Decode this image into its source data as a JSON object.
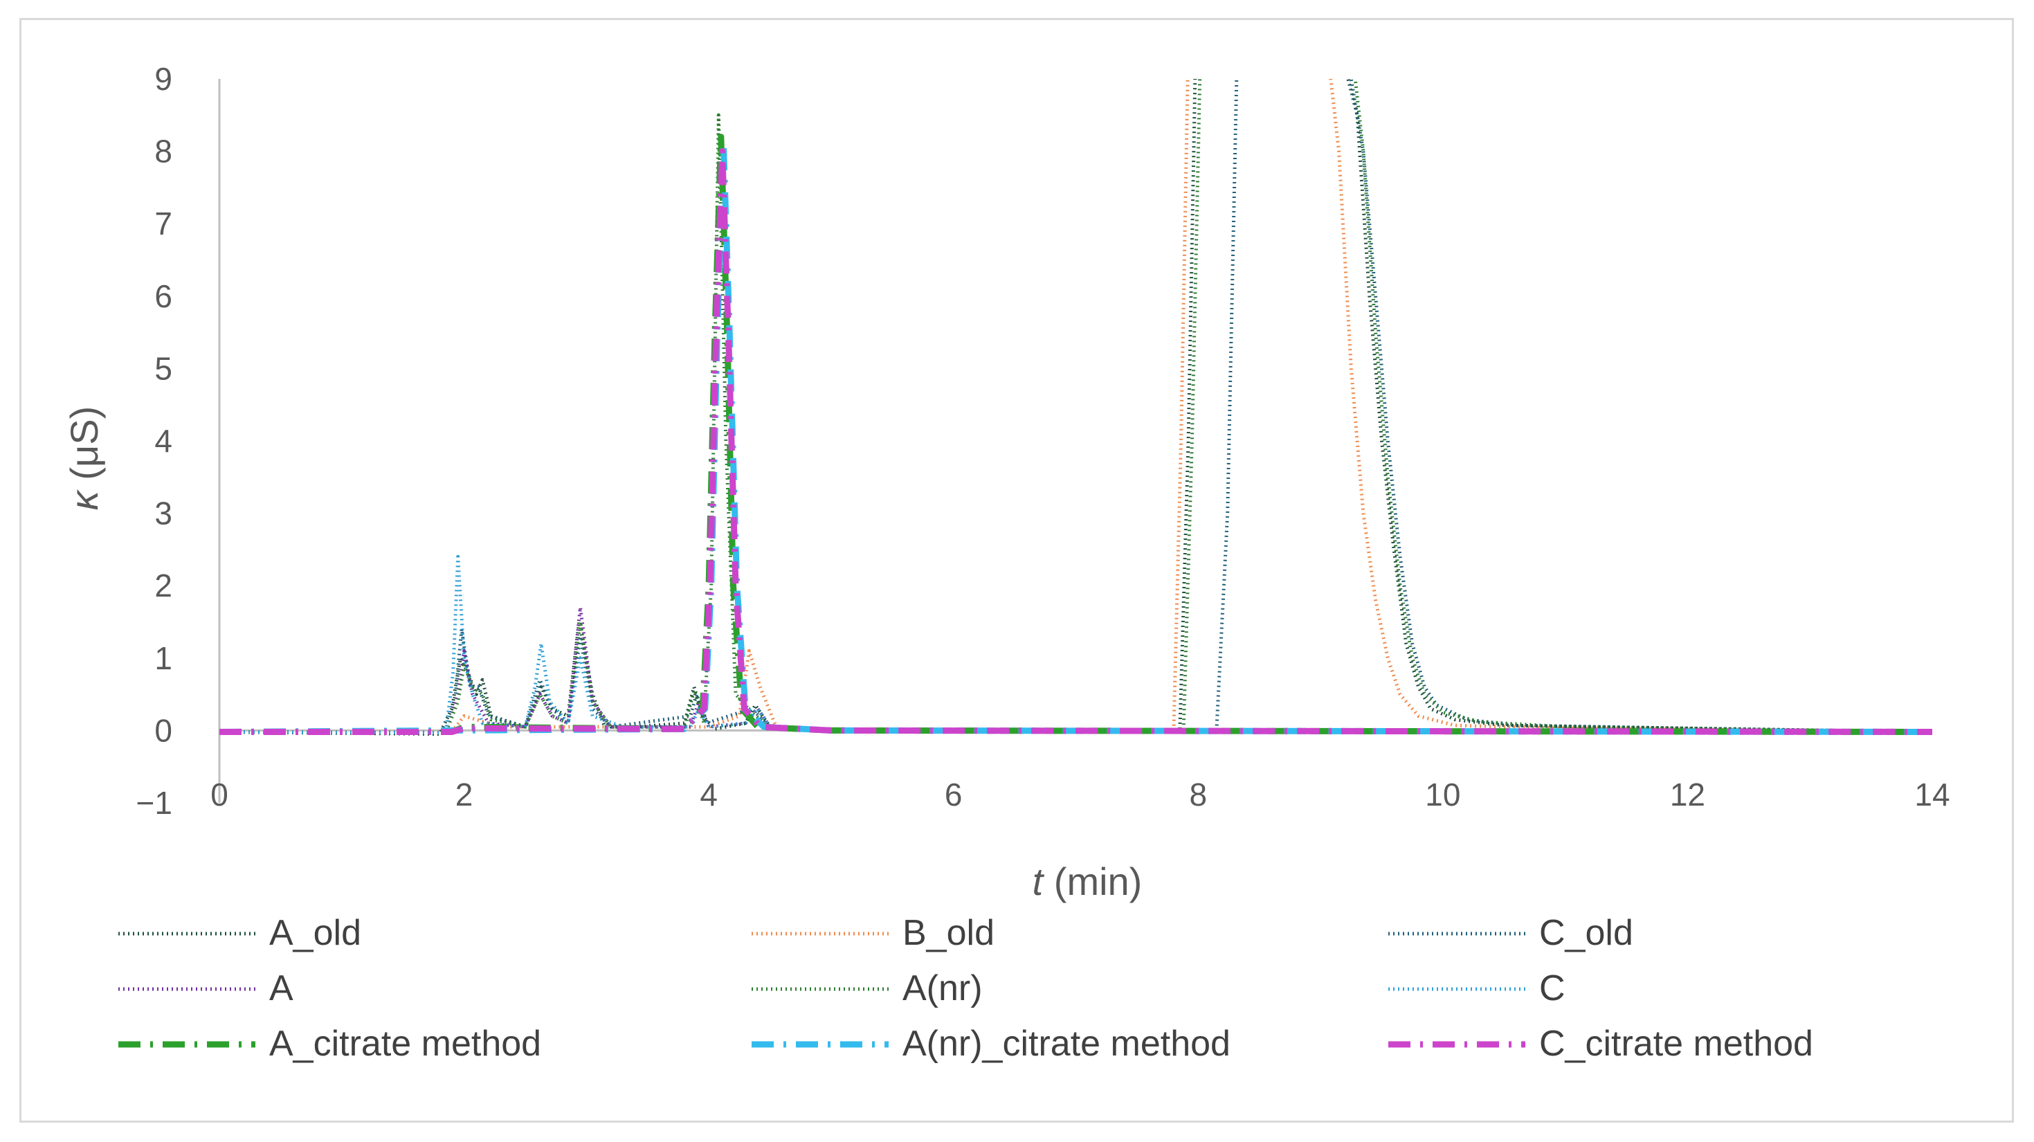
{
  "chart_data": {
    "type": "line",
    "title": "",
    "xlabel_italic": "t",
    "xlabel_rest": " (min)",
    "ylabel_italic": "κ",
    "ylabel_rest": " (μS)",
    "xlim": [
      0,
      14
    ],
    "ylim": [
      -1,
      9
    ],
    "xticks": [
      0,
      2,
      4,
      6,
      8,
      10,
      12,
      14
    ],
    "yticks": [
      -1,
      0,
      1,
      2,
      3,
      4,
      5,
      6,
      7,
      8,
      9
    ],
    "ytick_labels": [
      "−1",
      "0",
      "1",
      "2",
      "3",
      "4",
      "5",
      "6",
      "7",
      "8",
      "9"
    ],
    "grid": false,
    "legend_position": "bottom",
    "series": [
      {
        "name": "A_old",
        "color": "#1f4e3d",
        "style": "dotted",
        "width": 5,
        "points": [
          [
            0,
            -0.02
          ],
          [
            1.8,
            -0.05
          ],
          [
            1.9,
            0.3
          ],
          [
            1.97,
            1.0
          ],
          [
            2.03,
            0.8
          ],
          [
            2.1,
            0.5
          ],
          [
            2.15,
            0.7
          ],
          [
            2.22,
            0.2
          ],
          [
            2.5,
            0.05
          ],
          [
            2.63,
            0.6
          ],
          [
            2.72,
            0.3
          ],
          [
            2.85,
            0.2
          ],
          [
            2.94,
            1.5
          ],
          [
            3.05,
            0.5
          ],
          [
            3.15,
            0.05
          ],
          [
            3.4,
            0.05
          ],
          [
            3.8,
            0.1
          ],
          [
            3.88,
            0.6
          ],
          [
            3.95,
            0.2
          ],
          [
            4.05,
            0.02
          ],
          [
            4.3,
            0.1
          ],
          [
            4.38,
            0.35
          ],
          [
            4.5,
            0.05
          ],
          [
            5,
            0.0
          ],
          [
            7.85,
            0.0
          ],
          [
            7.92,
            4.0
          ],
          [
            7.98,
            9.5
          ],
          [
            9.15,
            9.5
          ],
          [
            9.3,
            8.5
          ],
          [
            9.4,
            6.0
          ],
          [
            9.5,
            4.0
          ],
          [
            9.6,
            2.5
          ],
          [
            9.7,
            1.2
          ],
          [
            9.8,
            0.6
          ],
          [
            9.9,
            0.3
          ],
          [
            10.1,
            0.15
          ],
          [
            10.5,
            0.07
          ],
          [
            12,
            0.03
          ],
          [
            14,
            -0.02
          ]
        ]
      },
      {
        "name": "B_old",
        "color": "#f08a4b",
        "style": "dotted",
        "width": 5,
        "points": [
          [
            0,
            -0.02
          ],
          [
            1.9,
            -0.02
          ],
          [
            2.0,
            0.2
          ],
          [
            2.3,
            0.05
          ],
          [
            3.0,
            0.05
          ],
          [
            4.0,
            0.05
          ],
          [
            4.25,
            0.2
          ],
          [
            4.33,
            1.1
          ],
          [
            4.42,
            0.6
          ],
          [
            4.55,
            0.05
          ],
          [
            5,
            0.0
          ],
          [
            7.8,
            0.0
          ],
          [
            7.86,
            4.0
          ],
          [
            7.92,
            9.5
          ],
          [
            9.05,
            9.5
          ],
          [
            9.15,
            8.0
          ],
          [
            9.25,
            5.0
          ],
          [
            9.35,
            3.0
          ],
          [
            9.45,
            1.8
          ],
          [
            9.55,
            1.0
          ],
          [
            9.65,
            0.5
          ],
          [
            9.8,
            0.2
          ],
          [
            10.1,
            0.07
          ],
          [
            11,
            0.03
          ],
          [
            14,
            -0.02
          ]
        ]
      },
      {
        "name": "C_old",
        "color": "#1f5f7a",
        "style": "dotted",
        "width": 5,
        "points": [
          [
            0,
            -0.02
          ],
          [
            1.85,
            -0.03
          ],
          [
            1.93,
            0.5
          ],
          [
            1.98,
            1.4
          ],
          [
            2.05,
            0.6
          ],
          [
            2.12,
            0.6
          ],
          [
            2.2,
            0.2
          ],
          [
            2.5,
            0.05
          ],
          [
            2.62,
            0.7
          ],
          [
            2.72,
            0.3
          ],
          [
            2.85,
            0.1
          ],
          [
            2.95,
            1.3
          ],
          [
            3.05,
            0.3
          ],
          [
            3.2,
            0.05
          ],
          [
            3.85,
            0.2
          ],
          [
            3.9,
            0.5
          ],
          [
            3.98,
            0.1
          ],
          [
            4.35,
            0.3
          ],
          [
            4.5,
            0.05
          ],
          [
            5,
            0.0
          ],
          [
            8.15,
            0.0
          ],
          [
            8.24,
            3.0
          ],
          [
            8.32,
            9.5
          ],
          [
            9.2,
            9.5
          ],
          [
            9.35,
            8.0
          ],
          [
            9.45,
            6.0
          ],
          [
            9.55,
            4.0
          ],
          [
            9.65,
            2.4
          ],
          [
            9.75,
            1.2
          ],
          [
            9.85,
            0.6
          ],
          [
            9.95,
            0.35
          ],
          [
            10.2,
            0.15
          ],
          [
            10.6,
            0.07
          ],
          [
            12,
            0.03
          ],
          [
            14,
            -0.02
          ]
        ]
      },
      {
        "name": "A",
        "color": "#7030a0",
        "style": "dotted",
        "width": 5,
        "points": [
          [
            0,
            -0.02
          ],
          [
            1.85,
            -0.03
          ],
          [
            1.95,
            0.5
          ],
          [
            2.0,
            1.1
          ],
          [
            2.07,
            0.5
          ],
          [
            2.2,
            0.1
          ],
          [
            2.5,
            0.05
          ],
          [
            2.62,
            0.5
          ],
          [
            2.72,
            0.2
          ],
          [
            2.85,
            0.1
          ],
          [
            2.95,
            1.7
          ],
          [
            3.05,
            0.4
          ],
          [
            3.2,
            0.05
          ],
          [
            3.85,
            0.05
          ],
          [
            3.92,
            0.4
          ],
          [
            4.0,
            0.05
          ],
          [
            4.3,
            0.1
          ],
          [
            4.4,
            0.3
          ],
          [
            4.5,
            0.05
          ],
          [
            5,
            0.0
          ],
          [
            14,
            -0.02
          ]
        ]
      },
      {
        "name": "A(nr)",
        "color": "#2e7d32",
        "style": "dotted",
        "width": 5,
        "points": [
          [
            0,
            -0.02
          ],
          [
            1.85,
            -0.03
          ],
          [
            1.95,
            0.4
          ],
          [
            2.0,
            0.9
          ],
          [
            2.07,
            0.6
          ],
          [
            2.15,
            0.5
          ],
          [
            2.22,
            0.15
          ],
          [
            2.5,
            0.05
          ],
          [
            2.62,
            0.5
          ],
          [
            2.72,
            0.2
          ],
          [
            2.85,
            0.1
          ],
          [
            2.95,
            1.5
          ],
          [
            3.05,
            0.4
          ],
          [
            3.2,
            0.05
          ],
          [
            3.8,
            0.05
          ],
          [
            3.88,
            0.55
          ],
          [
            3.96,
            0.1
          ],
          [
            4.02,
            2.0
          ],
          [
            4.08,
            8.5
          ],
          [
            4.14,
            4.0
          ],
          [
            4.22,
            0.5
          ],
          [
            4.35,
            0.25
          ],
          [
            4.5,
            0.05
          ],
          [
            5,
            0.0
          ],
          [
            7.88,
            0.0
          ],
          [
            7.95,
            4.0
          ],
          [
            8.02,
            9.5
          ],
          [
            9.25,
            9.5
          ],
          [
            9.35,
            8.0
          ],
          [
            9.45,
            5.5
          ],
          [
            9.55,
            3.5
          ],
          [
            9.65,
            2.0
          ],
          [
            9.75,
            1.0
          ],
          [
            9.85,
            0.5
          ],
          [
            10.0,
            0.25
          ],
          [
            10.3,
            0.12
          ],
          [
            11,
            0.05
          ],
          [
            14,
            -0.02
          ]
        ]
      },
      {
        "name": "C",
        "color": "#2f9fd8",
        "style": "dotted",
        "width": 5,
        "points": [
          [
            0,
            -0.02
          ],
          [
            1.85,
            -0.03
          ],
          [
            1.91,
            0.8
          ],
          [
            1.95,
            2.4
          ],
          [
            2.0,
            1.0
          ],
          [
            2.07,
            0.5
          ],
          [
            2.15,
            0.1
          ],
          [
            2.5,
            0.05
          ],
          [
            2.58,
            0.6
          ],
          [
            2.63,
            1.2
          ],
          [
            2.7,
            0.4
          ],
          [
            2.85,
            0.1
          ],
          [
            2.95,
            1.0
          ],
          [
            3.05,
            0.2
          ],
          [
            3.3,
            0.05
          ],
          [
            3.85,
            0.05
          ],
          [
            3.92,
            0.3
          ],
          [
            4.0,
            0.05
          ],
          [
            4.3,
            0.1
          ],
          [
            4.4,
            0.3
          ],
          [
            4.5,
            0.05
          ],
          [
            5,
            0.0
          ],
          [
            14,
            -0.02
          ]
        ]
      },
      {
        "name": "A_citrate method",
        "color": "#2ca02c",
        "style": "dashdot",
        "width": 9,
        "points": [
          [
            0,
            -0.02
          ],
          [
            1.9,
            -0.02
          ],
          [
            2.0,
            0.05
          ],
          [
            3.8,
            0.02
          ],
          [
            3.95,
            0.3
          ],
          [
            4.0,
            2.0
          ],
          [
            4.05,
            5.5
          ],
          [
            4.1,
            8.2
          ],
          [
            4.15,
            5.5
          ],
          [
            4.2,
            2.0
          ],
          [
            4.27,
            0.3
          ],
          [
            4.4,
            0.05
          ],
          [
            5,
            0.0
          ],
          [
            14,
            -0.02
          ]
        ]
      },
      {
        "name": "A(nr)_citrate method",
        "color": "#33bbee",
        "style": "dashdot",
        "width": 9,
        "points": [
          [
            0,
            -0.02
          ],
          [
            3.8,
            0.02
          ],
          [
            3.97,
            0.3
          ],
          [
            4.02,
            2.0
          ],
          [
            4.07,
            5.5
          ],
          [
            4.12,
            8.1
          ],
          [
            4.17,
            5.5
          ],
          [
            4.23,
            2.0
          ],
          [
            4.3,
            0.3
          ],
          [
            4.45,
            0.05
          ],
          [
            5,
            0.0
          ],
          [
            14,
            -0.02
          ]
        ]
      },
      {
        "name": "C_citrate method",
        "color": "#cc44cc",
        "style": "dashdot",
        "width": 9,
        "points": [
          [
            0,
            -0.02
          ],
          [
            1.9,
            -0.02
          ],
          [
            2.0,
            0.03
          ],
          [
            3.8,
            0.02
          ],
          [
            3.96,
            0.3
          ],
          [
            4.01,
            2.0
          ],
          [
            4.06,
            5.5
          ],
          [
            4.11,
            8.0
          ],
          [
            4.16,
            5.5
          ],
          [
            4.22,
            2.0
          ],
          [
            4.29,
            0.3
          ],
          [
            4.42,
            0.05
          ],
          [
            5,
            0.0
          ],
          [
            14,
            -0.02
          ]
        ]
      }
    ]
  }
}
